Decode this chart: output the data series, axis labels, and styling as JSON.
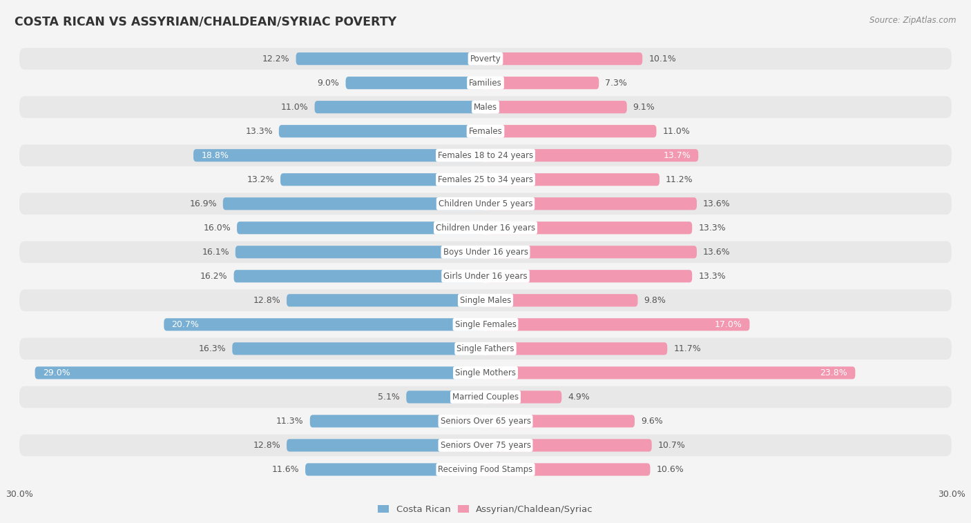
{
  "title": "COSTA RICAN VS ASSYRIAN/CHALDEAN/SYRIAC POVERTY",
  "source": "Source: ZipAtlas.com",
  "categories": [
    "Poverty",
    "Families",
    "Males",
    "Females",
    "Females 18 to 24 years",
    "Females 25 to 34 years",
    "Children Under 5 years",
    "Children Under 16 years",
    "Boys Under 16 years",
    "Girls Under 16 years",
    "Single Males",
    "Single Females",
    "Single Fathers",
    "Single Mothers",
    "Married Couples",
    "Seniors Over 65 years",
    "Seniors Over 75 years",
    "Receiving Food Stamps"
  ],
  "costa_rican": [
    12.2,
    9.0,
    11.0,
    13.3,
    18.8,
    13.2,
    16.9,
    16.0,
    16.1,
    16.2,
    12.8,
    20.7,
    16.3,
    29.0,
    5.1,
    11.3,
    12.8,
    11.6
  ],
  "assyrian": [
    10.1,
    7.3,
    9.1,
    11.0,
    13.7,
    11.2,
    13.6,
    13.3,
    13.6,
    13.3,
    9.8,
    17.0,
    11.7,
    23.8,
    4.9,
    9.6,
    10.7,
    10.6
  ],
  "costa_rican_color": "#7aafd4",
  "assyrian_color": "#f298b0",
  "highlight_rows": [
    4,
    11,
    13
  ],
  "bar_height": 0.52,
  "background_color": "#f4f4f4",
  "row_color_odd": "#e8e8e8",
  "row_color_even": "#f4f4f4",
  "x_max": 30.0,
  "label_fontsize": 9.0,
  "cat_fontsize": 8.5,
  "legend_costa_rican": "Costa Rican",
  "legend_assyrian": "Assyrian/Chaldean/Syriac"
}
